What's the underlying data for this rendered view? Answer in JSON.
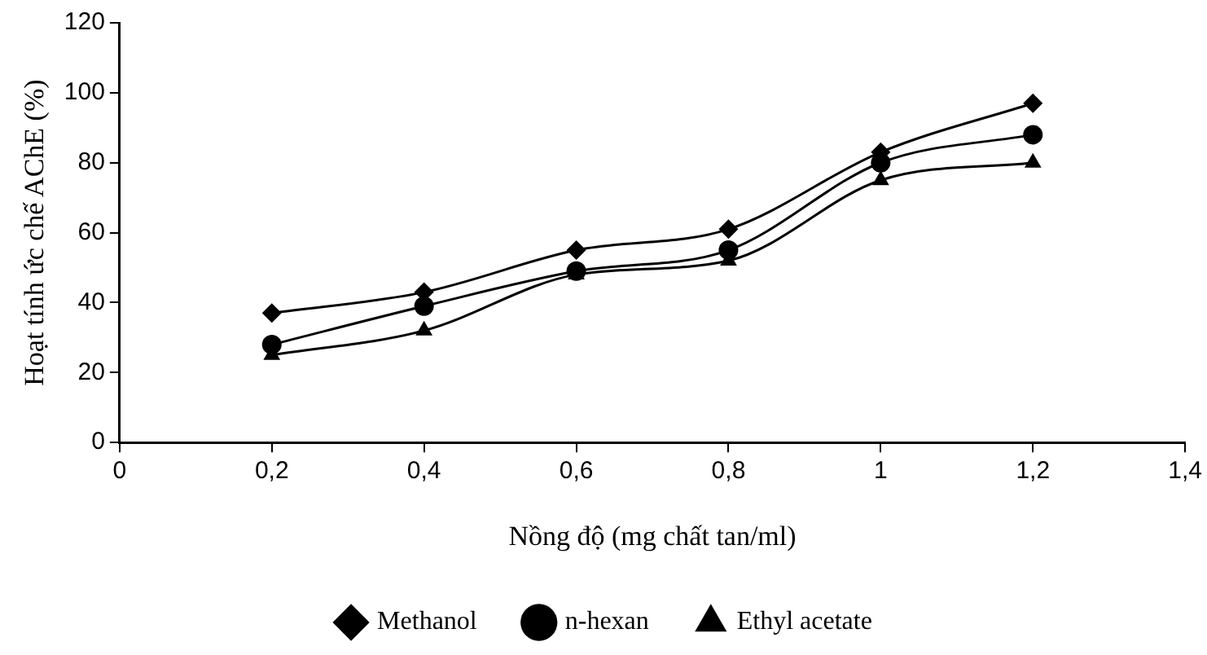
{
  "chart_data": {
    "type": "line",
    "xlabel": "Nồng độ (mg chất tan/ml)",
    "ylabel": "Hoạt tính ức chế AChE (%)",
    "x": [
      0.2,
      0.4,
      0.6,
      0.8,
      1,
      1.2
    ],
    "series": [
      {
        "name": "Methanol",
        "color": "#000000",
        "marker": "diamond",
        "values": [
          37,
          43,
          55,
          61,
          83,
          97
        ]
      },
      {
        "name": "n-hexan",
        "color": "#000000",
        "marker": "circle",
        "values": [
          28,
          39,
          49,
          55,
          80,
          88
        ]
      },
      {
        "name": "Ethyl acetate",
        "color": "#000000",
        "marker": "triangle",
        "values": [
          25,
          32,
          48,
          52,
          75,
          80
        ]
      }
    ],
    "xlim": [
      0,
      1.4
    ],
    "xticks": [
      {
        "value": 0,
        "label": "0"
      },
      {
        "value": 0.2,
        "label": "0,2"
      },
      {
        "value": 0.4,
        "label": "0,4"
      },
      {
        "value": 0.6,
        "label": "0,6"
      },
      {
        "value": 0.8,
        "label": "0,8"
      },
      {
        "value": 1,
        "label": "1"
      },
      {
        "value": 1.2,
        "label": "1,2"
      },
      {
        "value": 1.4,
        "label": "1,4"
      }
    ],
    "ylim": [
      0,
      120
    ],
    "yticks": [
      0,
      20,
      40,
      60,
      80,
      100,
      120
    ],
    "grid": false,
    "legend": "bottom",
    "line_style": "solid"
  }
}
